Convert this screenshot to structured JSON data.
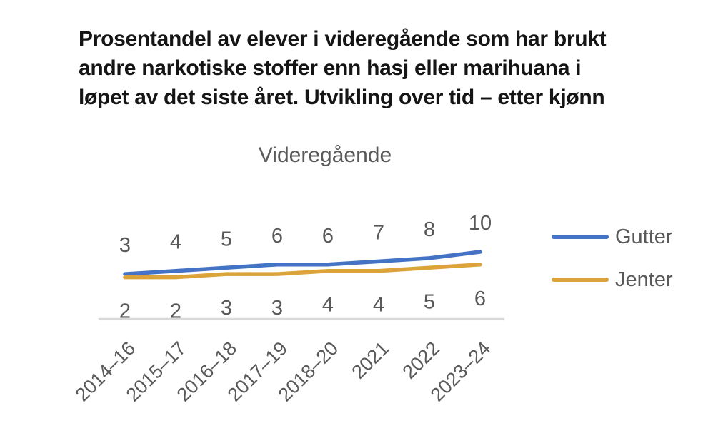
{
  "header": {
    "title_lines": [
      "Prosentandel av elever i videregående som har brukt",
      "andre narkotiske stoffer enn hasj eller marihuana i",
      "løpet av det siste året. Utvikling over tid – etter kjønn"
    ],
    "subtitle": "Videregående"
  },
  "chart_data": {
    "type": "line",
    "title": "Videregående",
    "categories": [
      "2014–16",
      "2015–17",
      "2016–18",
      "2017–19",
      "2018–20",
      "2021",
      "2022",
      "2023–24"
    ],
    "series": [
      {
        "name": "Gutter",
        "color": "#4472C4",
        "values": [
          3,
          4,
          5,
          6,
          6,
          7,
          8,
          10
        ]
      },
      {
        "name": "Jenter",
        "color": "#DCA33B",
        "values": [
          2,
          2,
          3,
          3,
          4,
          4,
          5,
          6
        ]
      }
    ],
    "xlabel": "",
    "ylabel": "",
    "y_axis_visible": false,
    "data_labels": true,
    "legend_position": "right",
    "grid": false,
    "axis_line_color": "#D9D9D9",
    "label_color": "#595959"
  }
}
